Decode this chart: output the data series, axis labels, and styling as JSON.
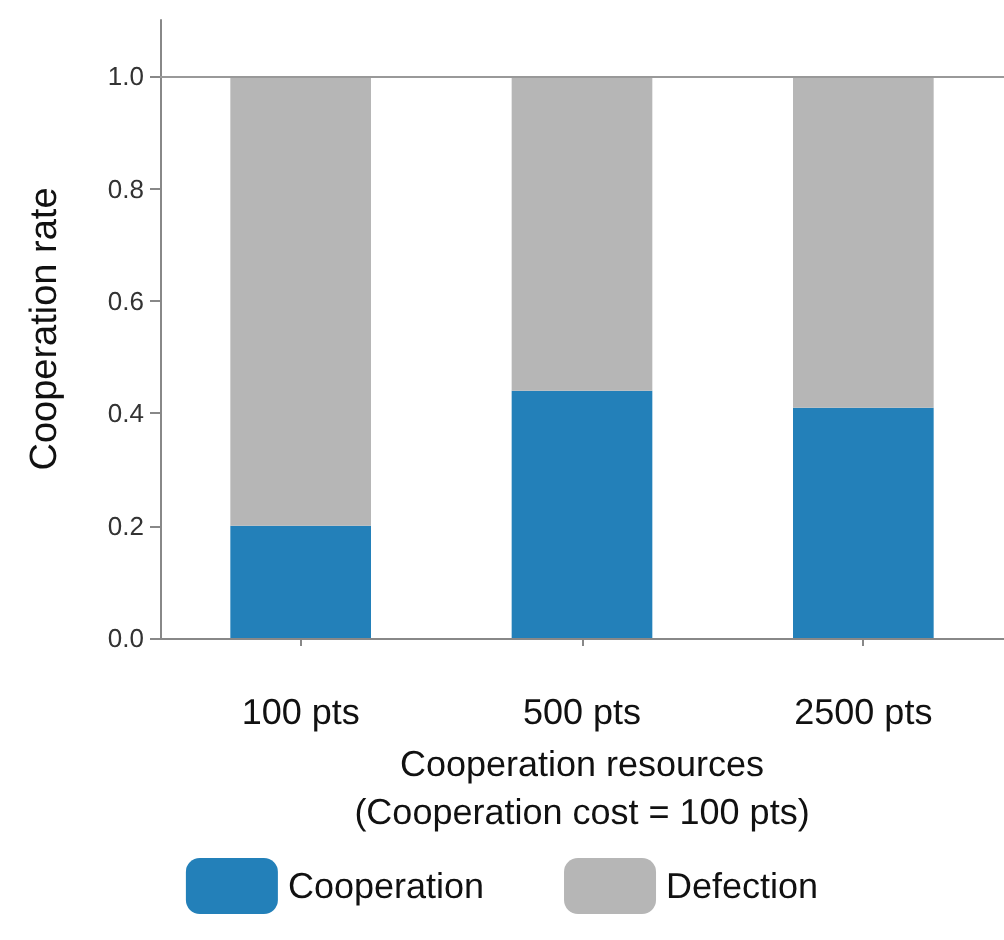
{
  "chart_data": {
    "type": "bar",
    "stacked": true,
    "xlabel": "Cooperation resources\n(Cooperation cost = 100 pts)",
    "ylabel": "Cooperation rate",
    "categories": [
      "100 pts",
      "500 pts",
      "2500 pts"
    ],
    "series": [
      {
        "name": "Cooperation",
        "color": "#2380b9",
        "values": [
          0.2,
          0.44,
          0.41
        ]
      },
      {
        "name": "Defection",
        "color": "#b6b6b6",
        "values": [
          0.8,
          0.56,
          0.59
        ]
      }
    ],
    "ylim": [
      0,
      1.1
    ],
    "yticks": [
      {
        "value": 0,
        "label": "0.0"
      },
      {
        "value": 0.2,
        "label": "0.2"
      },
      {
        "value": 0.4,
        "label": "0.4"
      },
      {
        "value": 0.6,
        "label": "0.6"
      },
      {
        "value": 0.8,
        "label": "0.8"
      },
      {
        "value": 1,
        "label": "1.0"
      }
    ],
    "ref_lines": [
      {
        "axis": "y",
        "value": 1,
        "color": "#999999"
      }
    ],
    "grid": false,
    "legend": "bottom"
  }
}
